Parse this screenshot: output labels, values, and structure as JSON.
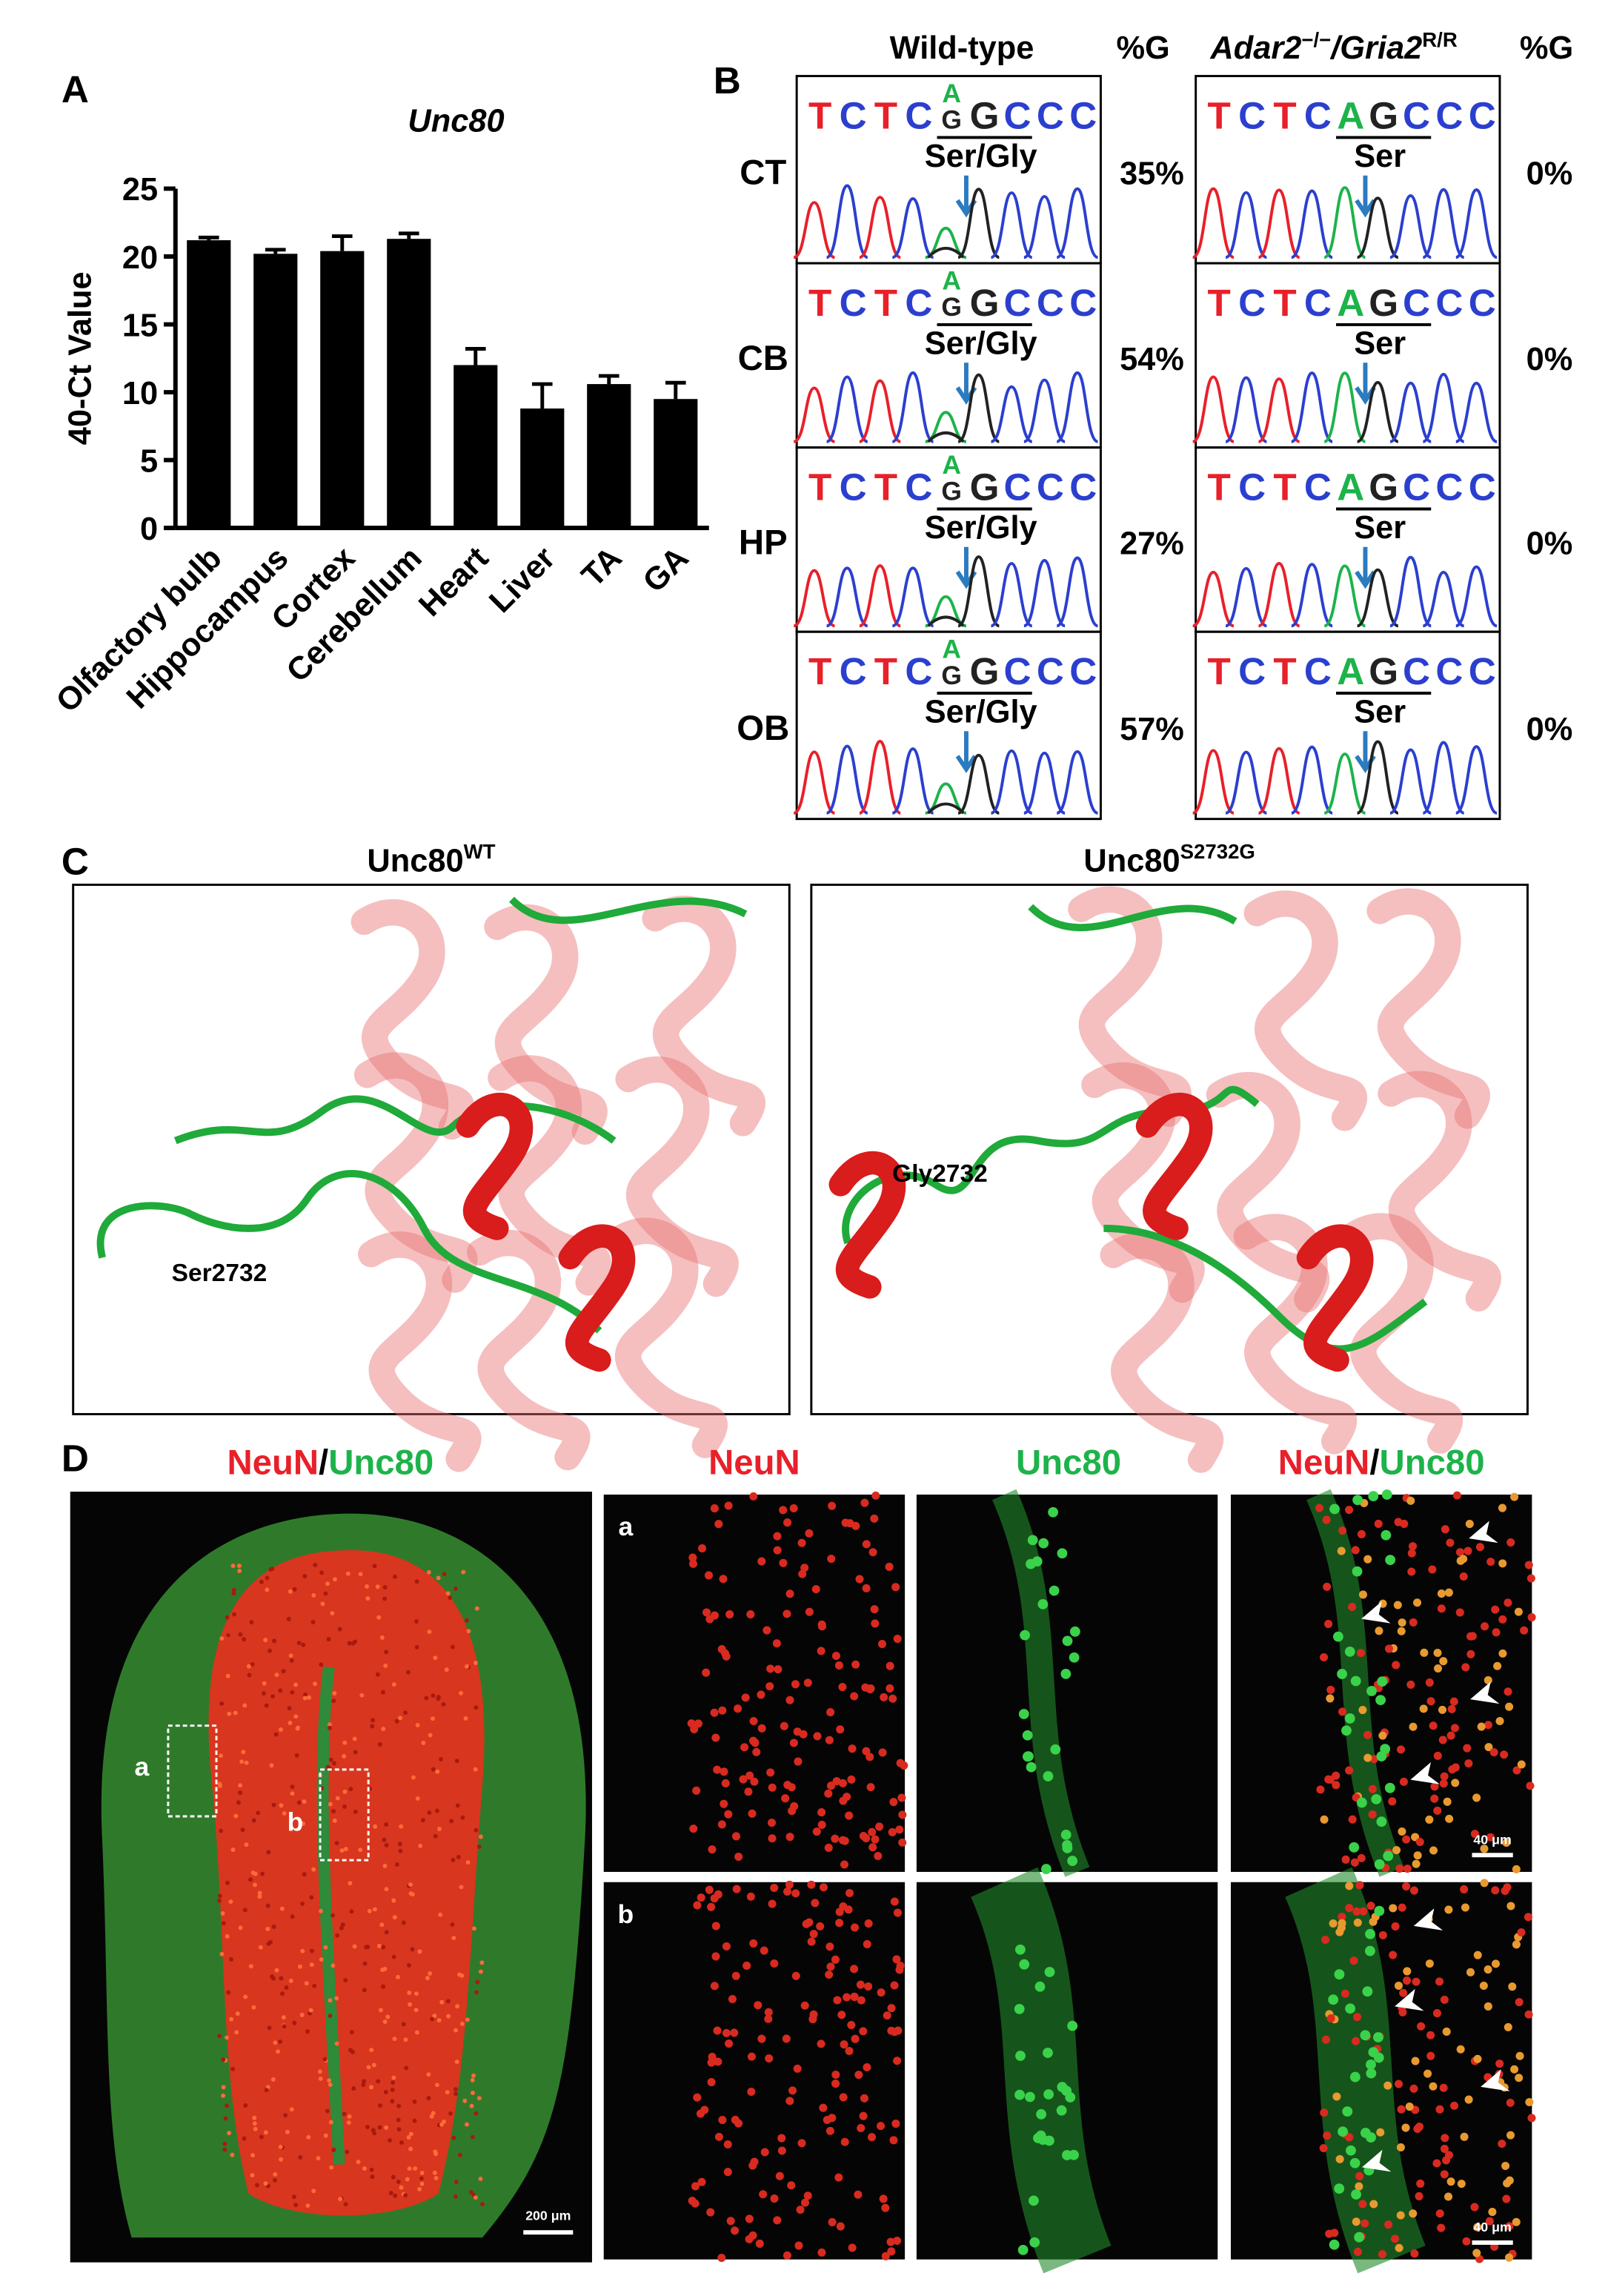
{
  "chart_data": {
    "type": "bar",
    "panel": "A",
    "title": "Unc80",
    "y_label": "40-Ct Value",
    "categories": [
      "Olfactory bulb",
      "Hippocampus",
      "Cortex",
      "Cerebellum",
      "Heart",
      "Liver",
      "TA",
      "GA"
    ],
    "values": [
      21.2,
      20.2,
      20.4,
      21.3,
      12.0,
      8.8,
      10.6,
      9.5
    ],
    "errors": [
      0.2,
      0.3,
      1.1,
      0.4,
      1.2,
      1.8,
      0.6,
      1.2
    ],
    "color": "#000000",
    "ylim": [
      0,
      25
    ],
    "yticks": [
      0,
      5,
      10,
      15,
      20,
      25
    ]
  },
  "panel_b": {
    "label": "B",
    "wt_title": "Wild-type",
    "wt_pct_title": "%G",
    "mut_title": [
      "Adar2",
      "−/−",
      "/Gria2",
      "R/R"
    ],
    "mut_pct_title": "%G",
    "rows": [
      {
        "region": "CT",
        "wt_sequence": [
          "T",
          "C",
          "T",
          "C",
          "G",
          "G",
          "C",
          "C",
          "C"
        ],
        "wt_edit": "A",
        "wt_codon": "Ser/Gly",
        "wt_percent": "35%",
        "mut_sequence": [
          "T",
          "C",
          "T",
          "C",
          "A",
          "G",
          "C",
          "C",
          "C"
        ],
        "mut_codon": "Ser",
        "mut_percent": "0%"
      },
      {
        "region": "CB",
        "wt_sequence": [
          "T",
          "C",
          "T",
          "C",
          "G",
          "G",
          "C",
          "C",
          "C"
        ],
        "wt_edit": "A",
        "wt_codon": "Ser/Gly",
        "wt_percent": "54%",
        "mut_sequence": [
          "T",
          "C",
          "T",
          "C",
          "A",
          "G",
          "C",
          "C",
          "C"
        ],
        "mut_codon": "Ser",
        "mut_percent": "0%"
      },
      {
        "region": "HP",
        "wt_sequence": [
          "T",
          "C",
          "T",
          "C",
          "G",
          "G",
          "C",
          "C",
          "C"
        ],
        "wt_edit": "A",
        "wt_codon": "Ser/Gly",
        "wt_percent": "27%",
        "mut_sequence": [
          "T",
          "C",
          "T",
          "C",
          "A",
          "G",
          "C",
          "C",
          "C"
        ],
        "mut_codon": "Ser",
        "mut_percent": "0%"
      },
      {
        "region": "OB",
        "wt_sequence": [
          "T",
          "C",
          "T",
          "C",
          "G",
          "G",
          "C",
          "C",
          "C"
        ],
        "wt_edit": "A",
        "wt_codon": "Ser/Gly",
        "wt_percent": "57%",
        "mut_sequence": [
          "T",
          "C",
          "T",
          "C",
          "A",
          "G",
          "C",
          "C",
          "C"
        ],
        "mut_codon": "Ser",
        "mut_percent": "0%"
      }
    ]
  },
  "panel_c": {
    "label": "C",
    "left_title": [
      "Unc80",
      "WT"
    ],
    "left_residue": "Ser2732",
    "right_title": [
      "Unc80",
      "S2732G"
    ],
    "right_residue": "Gly2732"
  },
  "panel_d": {
    "label": "D",
    "overview_title": [
      "NeuN",
      "/",
      "Unc80"
    ],
    "column_titles": [
      [
        "NeuN"
      ],
      [
        "Unc80"
      ],
      [
        "NeuN",
        "/",
        "Unc80"
      ]
    ],
    "region_labels": [
      "a",
      "b"
    ],
    "overview_scale": "200 μm",
    "inset_scales": [
      "40 μm",
      "40 μm"
    ]
  }
}
